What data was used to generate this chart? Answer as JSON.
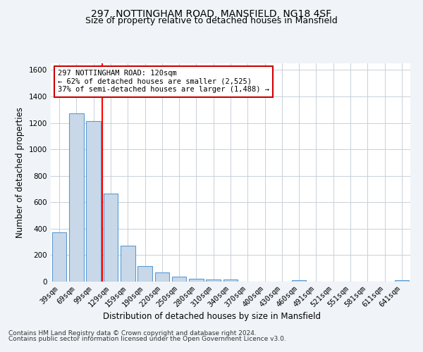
{
  "title": "297, NOTTINGHAM ROAD, MANSFIELD, NG18 4SF",
  "subtitle": "Size of property relative to detached houses in Mansfield",
  "xlabel": "Distribution of detached houses by size in Mansfield",
  "ylabel": "Number of detached properties",
  "categories": [
    "39sqm",
    "69sqm",
    "99sqm",
    "129sqm",
    "159sqm",
    "190sqm",
    "220sqm",
    "250sqm",
    "280sqm",
    "310sqm",
    "340sqm",
    "370sqm",
    "400sqm",
    "430sqm",
    "460sqm",
    "491sqm",
    "521sqm",
    "551sqm",
    "581sqm",
    "611sqm",
    "641sqm"
  ],
  "values": [
    375,
    1270,
    1215,
    665,
    270,
    115,
    70,
    37,
    20,
    17,
    18,
    0,
    0,
    0,
    13,
    0,
    0,
    0,
    0,
    0,
    13
  ],
  "bar_color": "#c8d8e8",
  "bar_edge_color": "#5b9bd5",
  "annotation_line1": "297 NOTTINGHAM ROAD: 120sqm",
  "annotation_line2": "← 62% of detached houses are smaller (2,525)",
  "annotation_line3": "37% of semi-detached houses are larger (1,488) →",
  "annotation_box_color": "#ffffff",
  "annotation_box_edge": "#cc0000",
  "ylim": [
    0,
    1650
  ],
  "yticks": [
    0,
    200,
    400,
    600,
    800,
    1000,
    1200,
    1400,
    1600
  ],
  "footer_line1": "Contains HM Land Registry data © Crown copyright and database right 2024.",
  "footer_line2": "Contains public sector information licensed under the Open Government Licence v3.0.",
  "bg_color": "#f0f4f8",
  "plot_bg_color": "#ffffff",
  "grid_color": "#c8d0d8"
}
